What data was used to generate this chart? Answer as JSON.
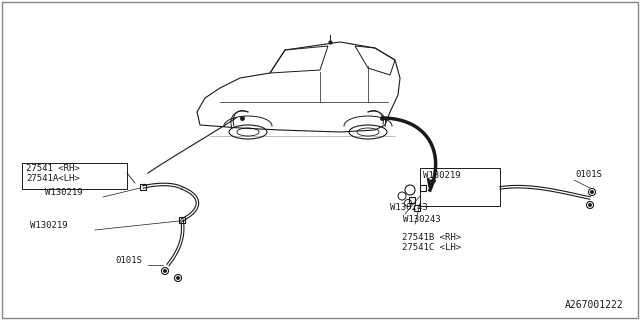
{
  "bg_color": "#ffffff",
  "line_color": "#1a1a1a",
  "border_color": "#888888",
  "diagram_id": "A267001222",
  "labels": {
    "left_part1": "27541 <RH>",
    "left_part2": "27541A<LH>",
    "left_bolt1": "W130219",
    "left_bolt2": "W130219",
    "left_sensor": "0101S",
    "right_bolt_w219": "W130219",
    "right_bolt_w243a": "W130243",
    "right_bolt_w243b": "W130243",
    "right_part1": "27541B <RH>",
    "right_part2": "27541C <LH>",
    "right_sensor": "0101S"
  },
  "font_size": 6.5
}
